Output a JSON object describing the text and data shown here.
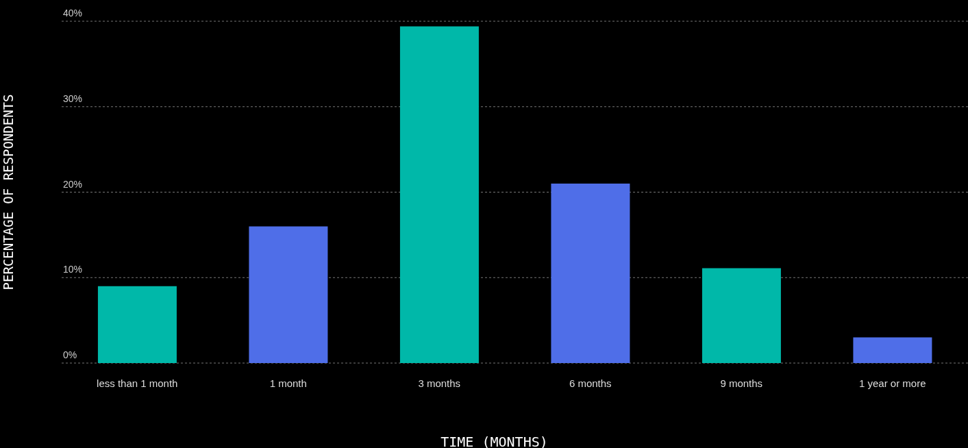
{
  "chart_data": {
    "type": "bar",
    "xlabel": "TIME (MONTHS)",
    "ylabel": "PERCENTAGE OF RESPONDENTS",
    "categories": [
      "less than 1 month",
      "1 month",
      "3 months",
      "6 months",
      "9 months",
      "1 year or more"
    ],
    "values": [
      9,
      16,
      39.4,
      21,
      11.1,
      3
    ],
    "colors": [
      "#00b8a9",
      "#4f6ee8",
      "#00b8a9",
      "#4f6ee8",
      "#00b8a9",
      "#4f6ee8"
    ],
    "ylim": [
      0,
      40
    ],
    "yticks": [
      {
        "value": 0,
        "label": "0%"
      },
      {
        "value": 10,
        "label": "10%"
      },
      {
        "value": 20,
        "label": "20%"
      },
      {
        "value": 30,
        "label": "30%"
      },
      {
        "value": 40,
        "label": "40%"
      }
    ],
    "grid": "y"
  }
}
